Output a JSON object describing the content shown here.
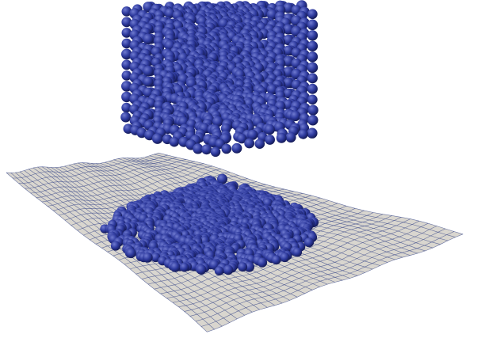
{
  "scene": {
    "background": "#ffffff",
    "cloth_fill": "#d9d6cf",
    "cloth_line": "#3b4a8a",
    "sphere_color": "#2e3a9e",
    "sphere_highlight": "#6f7ad0",
    "sphere_shadow": "#141a55"
  }
}
